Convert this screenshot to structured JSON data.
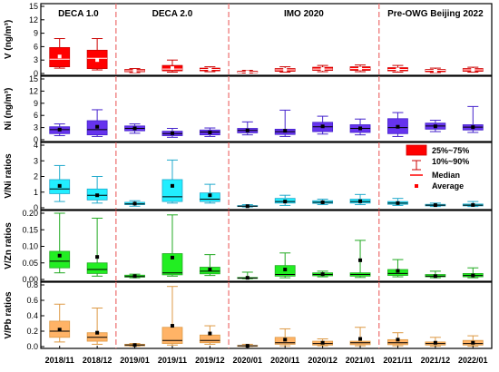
{
  "chart_data": {
    "type": "box",
    "periods": [
      "DECA 1.0",
      "DECA 2.0",
      "IMO 2020",
      "Pre-OWG Beijing 2022"
    ],
    "categories": [
      "2018/11",
      "2018/12",
      "2019/01",
      "2019/11",
      "2019/12",
      "2020/01",
      "2020/11",
      "2020/12",
      "2021/01",
      "2021/11",
      "2021/12",
      "2022/01"
    ],
    "legend": {
      "box": "25%~75%",
      "whisker": "10%~90%",
      "median": "Median",
      "average": "Average"
    },
    "panels": [
      {
        "ylabel": "V (ng/m³)",
        "ylim": [
          0,
          15
        ],
        "yticks": [
          0,
          3,
          6,
          9,
          12,
          15
        ],
        "color": "#ff0000",
        "boxes": [
          {
            "w_lo": 1.2,
            "q1": 1.5,
            "median": 3.2,
            "q3": 5.8,
            "w_hi": 7.8,
            "mean": 3.8
          },
          {
            "w_lo": 0.8,
            "q1": 1.1,
            "median": 3.4,
            "q3": 5.2,
            "w_hi": 7.8,
            "mean": 3.0
          },
          {
            "w_lo": 0.2,
            "q1": 0.4,
            "median": 0.6,
            "q3": 0.9,
            "w_hi": 1.1,
            "mean": 0.6
          },
          {
            "w_lo": 0.3,
            "q1": 0.6,
            "median": 1.0,
            "q3": 1.8,
            "w_hi": 3.0,
            "mean": 1.2
          },
          {
            "w_lo": 0.4,
            "q1": 0.6,
            "median": 0.9,
            "q3": 1.2,
            "w_hi": 1.5,
            "mean": 0.9
          },
          {
            "w_lo": 0.1,
            "q1": 0.2,
            "median": 0.3,
            "q3": 0.5,
            "w_hi": 0.7,
            "mean": 0.3
          },
          {
            "w_lo": 0.3,
            "q1": 0.5,
            "median": 0.8,
            "q3": 1.1,
            "w_hi": 1.5,
            "mean": 0.8
          },
          {
            "w_lo": 0.4,
            "q1": 0.7,
            "median": 1.0,
            "q3": 1.4,
            "w_hi": 1.8,
            "mean": 1.0
          },
          {
            "w_lo": 0.4,
            "q1": 0.7,
            "median": 1.1,
            "q3": 1.5,
            "w_hi": 1.9,
            "mean": 1.1
          },
          {
            "w_lo": 0.3,
            "q1": 0.6,
            "median": 0.9,
            "q3": 1.3,
            "w_hi": 1.8,
            "mean": 0.9
          },
          {
            "w_lo": 0.2,
            "q1": 0.4,
            "median": 0.7,
            "q3": 0.9,
            "w_hi": 1.2,
            "mean": 0.6
          },
          {
            "w_lo": 0.3,
            "q1": 0.5,
            "median": 0.8,
            "q3": 1.1,
            "w_hi": 1.4,
            "mean": 0.8
          }
        ]
      },
      {
        "ylabel": "Ni (ng/m³)",
        "ylim": [
          0,
          15
        ],
        "yticks": [
          0,
          3,
          6,
          9,
          12,
          15
        ],
        "color": "#6633ee",
        "boxes": [
          {
            "w_lo": 1.0,
            "q1": 1.5,
            "median": 2.5,
            "q3": 3.2,
            "w_hi": 3.9,
            "mean": 2.5
          },
          {
            "w_lo": 0.8,
            "q1": 1.2,
            "median": 2.5,
            "q3": 4.7,
            "w_hi": 7.4,
            "mean": 3.2
          },
          {
            "w_lo": 1.6,
            "q1": 2.2,
            "median": 2.8,
            "q3": 3.4,
            "w_hi": 3.9,
            "mean": 2.8
          },
          {
            "w_lo": 0.6,
            "q1": 1.0,
            "median": 1.5,
            "q3": 2.1,
            "w_hi": 2.8,
            "mean": 1.6
          },
          {
            "w_lo": 0.8,
            "q1": 1.2,
            "median": 1.9,
            "q3": 2.4,
            "w_hi": 2.9,
            "mean": 1.8
          },
          {
            "w_lo": 1.2,
            "q1": 1.7,
            "median": 2.3,
            "q3": 2.8,
            "w_hi": 4.4,
            "mean": 2.3
          },
          {
            "w_lo": 0.8,
            "q1": 1.3,
            "median": 2.0,
            "q3": 2.6,
            "w_hi": 7.3,
            "mean": 2.2
          },
          {
            "w_lo": 1.4,
            "q1": 2.0,
            "median": 3.2,
            "q3": 4.3,
            "w_hi": 5.8,
            "mean": 3.3
          },
          {
            "w_lo": 1.2,
            "q1": 1.8,
            "median": 2.8,
            "q3": 3.7,
            "w_hi": 5.1,
            "mean": 2.8
          },
          {
            "w_lo": 0.8,
            "q1": 1.5,
            "median": 3.0,
            "q3": 5.2,
            "w_hi": 6.7,
            "mean": 3.2
          },
          {
            "w_lo": 2.0,
            "q1": 2.6,
            "median": 3.4,
            "q3": 4.1,
            "w_hi": 4.8,
            "mean": 3.3
          },
          {
            "w_lo": 1.8,
            "q1": 2.4,
            "median": 3.1,
            "q3": 3.7,
            "w_hi": 8.2,
            "mean": 3.1
          }
        ]
      },
      {
        "ylabel": "V/Ni ratios",
        "ylim": [
          0,
          4
        ],
        "yticks": [
          0,
          1,
          2,
          3,
          4
        ],
        "color": "#22eeff",
        "boxes": [
          {
            "w_lo": 0.4,
            "q1": 0.9,
            "median": 1.2,
            "q3": 1.8,
            "w_hi": 2.7,
            "mean": 1.4
          },
          {
            "w_lo": 0.3,
            "q1": 0.5,
            "median": 0.8,
            "q3": 1.2,
            "w_hi": 2.0,
            "mean": 0.8
          },
          {
            "w_lo": 0.1,
            "q1": 0.2,
            "median": 0.25,
            "q3": 0.35,
            "w_hi": 0.45,
            "mean": 0.27
          },
          {
            "w_lo": 0.3,
            "q1": 0.4,
            "median": 0.7,
            "q3": 1.8,
            "w_hi": 3.05,
            "mean": 1.4
          },
          {
            "w_lo": 0.3,
            "q1": 0.4,
            "median": 0.55,
            "q3": 0.95,
            "w_hi": 1.5,
            "mean": 0.8
          },
          {
            "w_lo": 0.05,
            "q1": 0.08,
            "median": 0.1,
            "q3": 0.14,
            "w_hi": 0.2,
            "mean": 0.1
          },
          {
            "w_lo": 0.15,
            "q1": 0.3,
            "median": 0.4,
            "q3": 0.6,
            "w_hi": 0.8,
            "mean": 0.4
          },
          {
            "w_lo": 0.2,
            "q1": 0.28,
            "median": 0.35,
            "q3": 0.45,
            "w_hi": 0.55,
            "mean": 0.35
          },
          {
            "w_lo": 0.2,
            "q1": 0.3,
            "median": 0.4,
            "q3": 0.55,
            "w_hi": 0.85,
            "mean": 0.42
          },
          {
            "w_lo": 0.15,
            "q1": 0.22,
            "median": 0.3,
            "q3": 0.4,
            "w_hi": 0.6,
            "mean": 0.3
          },
          {
            "w_lo": 0.08,
            "q1": 0.12,
            "median": 0.17,
            "q3": 0.22,
            "w_hi": 0.3,
            "mean": 0.17
          },
          {
            "w_lo": 0.08,
            "q1": 0.12,
            "median": 0.17,
            "q3": 0.24,
            "w_hi": 0.4,
            "mean": 0.18
          }
        ]
      },
      {
        "ylabel": "V/Zn ratios",
        "ylim": [
          0,
          0.2
        ],
        "yticks": [
          0.0,
          0.05,
          0.1,
          0.15,
          0.2
        ],
        "color": "#22ee22",
        "boxes": [
          {
            "w_lo": 0.02,
            "q1": 0.035,
            "median": 0.055,
            "q3": 0.085,
            "w_hi": 0.2,
            "mean": 0.072
          },
          {
            "w_lo": 0.01,
            "q1": 0.018,
            "median": 0.03,
            "q3": 0.05,
            "w_hi": 0.185,
            "mean": 0.068
          },
          {
            "w_lo": 0.005,
            "q1": 0.007,
            "median": 0.009,
            "q3": 0.013,
            "w_hi": 0.016,
            "mean": 0.01
          },
          {
            "w_lo": 0.01,
            "q1": 0.014,
            "median": 0.02,
            "q3": 0.078,
            "w_hi": 0.195,
            "mean": 0.066
          },
          {
            "w_lo": 0.012,
            "q1": 0.017,
            "median": 0.025,
            "q3": 0.037,
            "w_hi": 0.075,
            "mean": 0.03
          },
          {
            "w_lo": 0.002,
            "q1": 0.003,
            "median": 0.004,
            "q3": 0.006,
            "w_hi": 0.022,
            "mean": 0.005
          },
          {
            "w_lo": 0.005,
            "q1": 0.01,
            "median": 0.015,
            "q3": 0.042,
            "w_hi": 0.08,
            "mean": 0.03
          },
          {
            "w_lo": 0.008,
            "q1": 0.011,
            "median": 0.015,
            "q3": 0.02,
            "w_hi": 0.025,
            "mean": 0.016
          },
          {
            "w_lo": 0.006,
            "q1": 0.01,
            "median": 0.015,
            "q3": 0.02,
            "w_hi": 0.118,
            "mean": 0.058
          },
          {
            "w_lo": 0.008,
            "q1": 0.012,
            "median": 0.018,
            "q3": 0.03,
            "w_hi": 0.06,
            "mean": 0.026
          },
          {
            "w_lo": 0.005,
            "q1": 0.008,
            "median": 0.01,
            "q3": 0.015,
            "w_hi": 0.025,
            "mean": 0.01
          },
          {
            "w_lo": 0.005,
            "q1": 0.008,
            "median": 0.012,
            "q3": 0.018,
            "w_hi": 0.035,
            "mean": 0.012
          }
        ]
      },
      {
        "ylabel": "V/Pb ratios",
        "ylim": [
          0,
          0.8
        ],
        "yticks": [
          0.0,
          0.2,
          0.4,
          0.6,
          0.8
        ],
        "color": "#ffb366",
        "boxes": [
          {
            "w_lo": 0.06,
            "q1": 0.12,
            "median": 0.2,
            "q3": 0.33,
            "w_hi": 0.55,
            "mean": 0.22
          },
          {
            "w_lo": 0.03,
            "q1": 0.07,
            "median": 0.12,
            "q3": 0.18,
            "w_hi": 0.5,
            "mean": 0.18
          },
          {
            "w_lo": 0.005,
            "q1": 0.01,
            "median": 0.02,
            "q3": 0.03,
            "w_hi": 0.04,
            "mean": 0.02
          },
          {
            "w_lo": 0.02,
            "q1": 0.04,
            "median": 0.08,
            "q3": 0.25,
            "w_hi": 0.78,
            "mean": 0.27
          },
          {
            "w_lo": 0.03,
            "q1": 0.05,
            "median": 0.08,
            "q3": 0.15,
            "w_hi": 0.27,
            "mean": 0.17
          },
          {
            "w_lo": 0.003,
            "q1": 0.006,
            "median": 0.01,
            "q3": 0.015,
            "w_hi": 0.03,
            "mean": 0.01
          },
          {
            "w_lo": 0.01,
            "q1": 0.03,
            "median": 0.05,
            "q3": 0.12,
            "w_hi": 0.23,
            "mean": 0.09
          },
          {
            "w_lo": 0.01,
            "q1": 0.02,
            "median": 0.04,
            "q3": 0.07,
            "w_hi": 0.1,
            "mean": 0.05
          },
          {
            "w_lo": 0.01,
            "q1": 0.025,
            "median": 0.05,
            "q3": 0.07,
            "w_hi": 0.25,
            "mean": 0.1
          },
          {
            "w_lo": 0.01,
            "q1": 0.025,
            "median": 0.05,
            "q3": 0.09,
            "w_hi": 0.18,
            "mean": 0.09
          },
          {
            "w_lo": 0.005,
            "q1": 0.02,
            "median": 0.04,
            "q3": 0.06,
            "w_hi": 0.12,
            "mean": 0.05
          },
          {
            "w_lo": 0.005,
            "q1": 0.02,
            "median": 0.04,
            "q3": 0.08,
            "w_hi": 0.14,
            "mean": 0.05
          }
        ]
      }
    ],
    "separators_after": [
      "2018/12",
      "2019/12",
      "2021/01"
    ],
    "separator_color": "#ee7777",
    "average_marker_color": "#000000",
    "average_marker_color_legend": "#ff0000"
  }
}
